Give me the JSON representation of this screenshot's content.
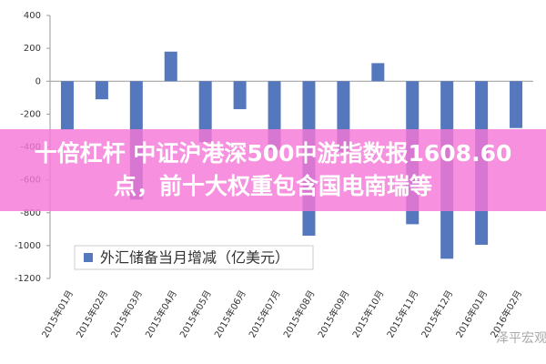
{
  "chart_data": {
    "type": "bar",
    "categories": [
      "2015年01月",
      "2015年02月",
      "2015年03月",
      "2015年04月",
      "2015年05月",
      "2015年06月",
      "2015年07月",
      "2015年08月",
      "2015年09月",
      "2015年10月",
      "2015年11月",
      "2015年12月",
      "2016年01月",
      "2016年02月"
    ],
    "series": [
      {
        "name": "外汇储备当月增减（亿美元）",
        "color": "#5477be",
        "values": [
          -294,
          -110,
          -720,
          180,
          -370,
          -170,
          -420,
          -940,
          -430,
          110,
          -870,
          -1080,
          -995,
          -285
        ]
      }
    ],
    "ylim": [
      -1200,
      400
    ],
    "yticks": [
      -1200,
      -1000,
      -800,
      -600,
      -400,
      -200,
      0,
      200,
      400
    ],
    "grid": false,
    "legend": "lower-left"
  },
  "banner": {
    "text": "十倍杠杆 中证沪港深500中游指数报1608.60点，前十大权重包含国电南瑞等"
  },
  "watermark": {
    "text": "泽平宏观"
  }
}
